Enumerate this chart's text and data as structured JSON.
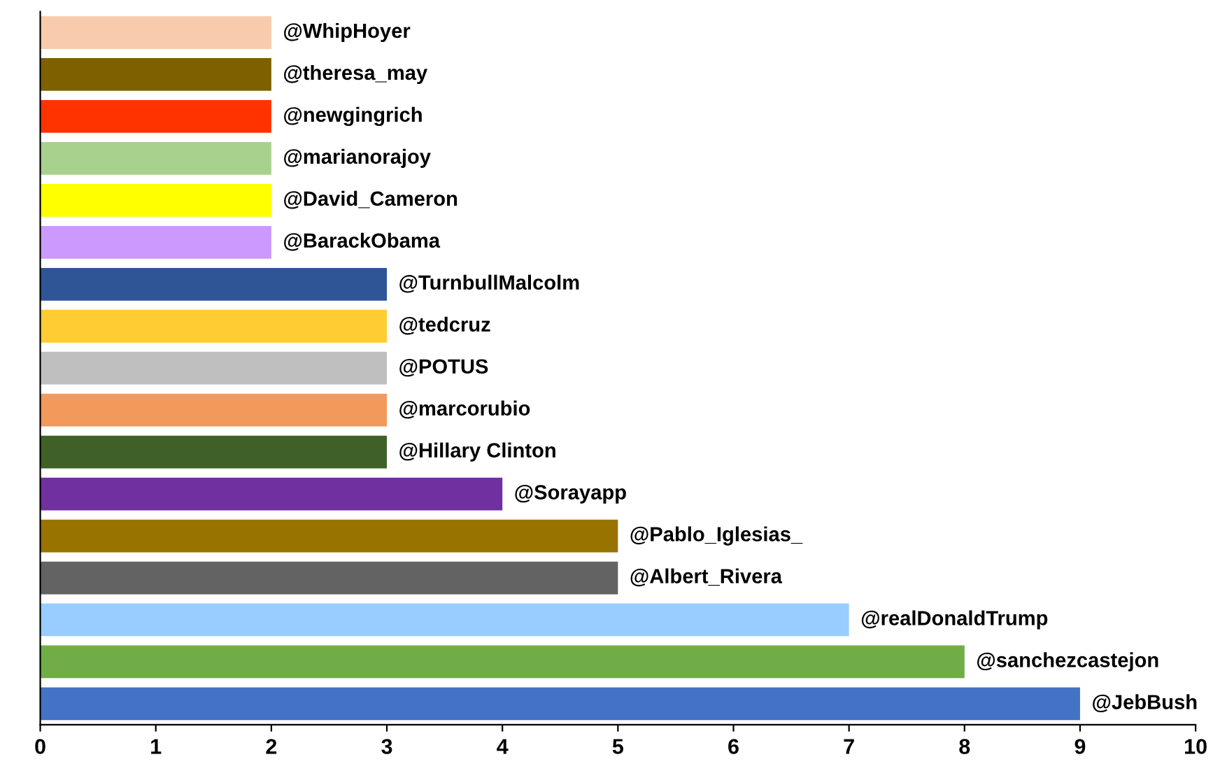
{
  "chart_data": {
    "type": "bar",
    "orientation": "horizontal",
    "tick_labels": "x",
    "grid": false,
    "legend": false,
    "categories": [
      "@WhipHoyer",
      "@theresa_may",
      "@newgingrich",
      "@marianorajoy",
      "@David_Cameron",
      "@BarackObama",
      "@TurnbullMalcolm",
      "@tedcruz",
      "@POTUS",
      "@marcorubio",
      "@Hillary Clinton",
      "@Sorayapp",
      "@Pablo_Iglesias_",
      "@Albert_Rivera",
      "@realDonaldTrump",
      "@sanchezcastejon",
      "@JebBush"
    ],
    "values": [
      2,
      2,
      2,
      2,
      2,
      2,
      3,
      3,
      3,
      3,
      3,
      4,
      5,
      5,
      7,
      8,
      9
    ],
    "colors": [
      "#f8cbad",
      "#7f6000",
      "#ff3300",
      "#a9d18e",
      "#ffff00",
      "#cc99ff",
      "#2f5597",
      "#ffcc33",
      "#bfbfbf",
      "#f19a5c",
      "#3f6128",
      "#7030a0",
      "#997300",
      "#636363",
      "#99ccff",
      "#70ad47",
      "#4472c4"
    ],
    "xlim": [
      0,
      10
    ],
    "xticks": [
      0,
      1,
      2,
      3,
      4,
      5,
      6,
      7,
      8,
      9,
      10
    ]
  }
}
